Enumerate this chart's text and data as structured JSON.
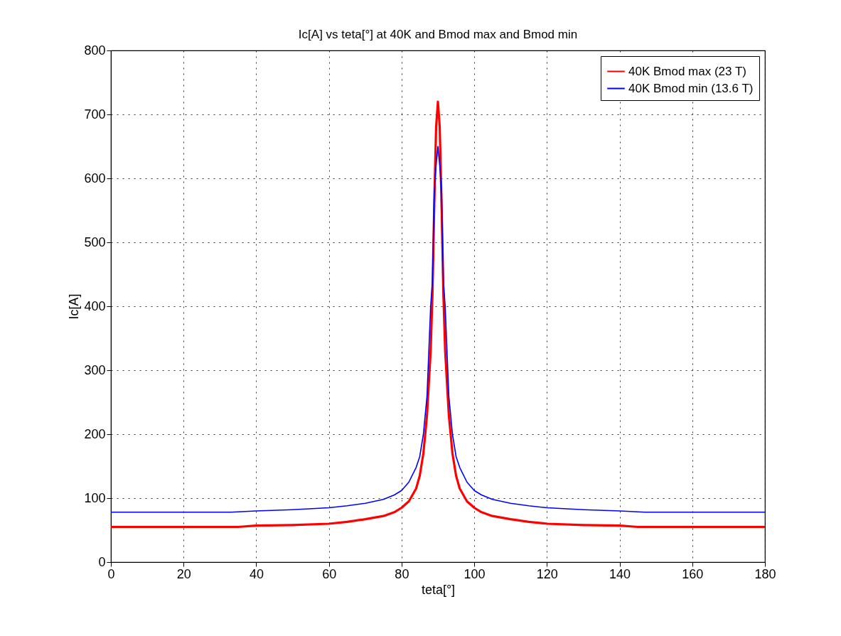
{
  "chart_data": {
    "type": "line",
    "title": "Ic[A] vs teta[°] at 40K and Bmod max and Bmod min",
    "xlabel": "teta[°]",
    "ylabel": "Ic[A]",
    "xlim": [
      0,
      180
    ],
    "ylim": [
      0,
      800
    ],
    "xticks": [
      0,
      20,
      40,
      60,
      80,
      100,
      120,
      140,
      160,
      180
    ],
    "yticks": [
      0,
      100,
      200,
      300,
      400,
      500,
      600,
      700,
      800
    ],
    "grid": true,
    "legend": "top right",
    "series": [
      {
        "name": "40K Bmod max (23 T)",
        "color": "#ff0000",
        "line_style": "solid",
        "x": [
          0,
          35,
          40,
          50,
          60,
          65,
          70,
          75,
          78,
          80,
          82,
          84,
          85,
          86,
          87,
          88,
          88.5,
          89,
          89.5,
          90,
          90.5,
          91,
          91.5,
          92,
          93,
          94,
          95,
          96,
          98,
          100,
          102,
          105,
          110,
          115,
          120,
          130,
          140,
          145,
          180
        ],
        "values": [
          55,
          55,
          57,
          58,
          60,
          63,
          67,
          72,
          78,
          85,
          95,
          115,
          135,
          170,
          230,
          330,
          420,
          560,
          680,
          720,
          680,
          560,
          420,
          330,
          230,
          170,
          135,
          115,
          95,
          85,
          78,
          72,
          67,
          63,
          60,
          58,
          57,
          55,
          55
        ]
      },
      {
        "name": "40K Bmod min (13.6 T)",
        "color": "#0000ff",
        "line_style": "solid",
        "x": [
          0,
          33,
          40,
          50,
          60,
          65,
          70,
          75,
          78,
          80,
          82,
          84,
          85,
          86,
          87,
          88,
          88.5,
          89,
          89.5,
          90,
          90.5,
          91,
          91.5,
          92,
          93,
          94,
          95,
          96,
          98,
          100,
          102,
          105,
          110,
          115,
          120,
          130,
          140,
          147,
          180
        ],
        "values": [
          78,
          78,
          80,
          82,
          85,
          88,
          92,
          98,
          105,
          112,
          125,
          148,
          165,
          200,
          260,
          400,
          440,
          580,
          620,
          650,
          620,
          580,
          440,
          400,
          260,
          200,
          165,
          148,
          125,
          112,
          105,
          98,
          92,
          88,
          85,
          82,
          80,
          78,
          78
        ]
      }
    ]
  }
}
